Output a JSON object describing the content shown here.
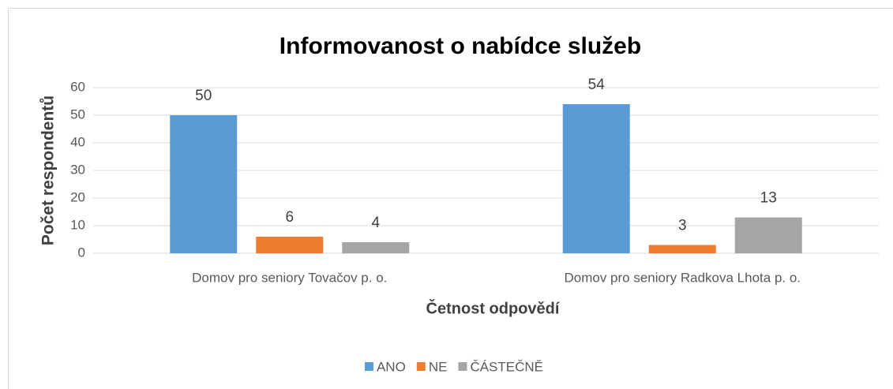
{
  "chart_data": {
    "type": "bar",
    "title": "Informovanost o nabídce služeb",
    "x_label": "Četnost odpovědí",
    "y_label": "Počet respondentů",
    "categories": [
      "Domov pro seniory Tovačov p. o.",
      "Domov pro seniory Radkova Lhota p. o."
    ],
    "series": [
      {
        "name": "ANO",
        "color": "#5b9bd5",
        "values": [
          50,
          54
        ]
      },
      {
        "name": "NE",
        "color": "#ed7d31",
        "values": [
          6,
          3
        ]
      },
      {
        "name": "ČÁSTEČNĚ",
        "color": "#a5a5a5",
        "values": [
          4,
          13
        ]
      }
    ],
    "ylim": [
      0,
      60
    ],
    "yticks": [
      0,
      10,
      20,
      30,
      40,
      50,
      60
    ],
    "grid": true,
    "legend": "bottom"
  }
}
